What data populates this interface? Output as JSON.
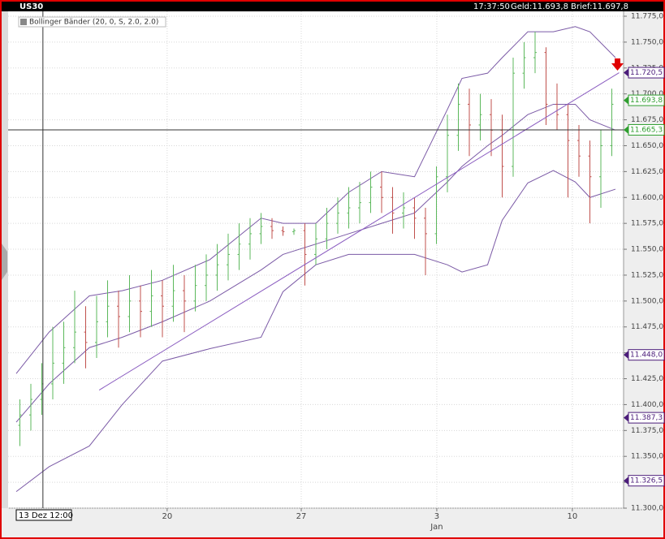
{
  "chart_data": {
    "type": "ohlc",
    "symbol": "US30",
    "time": "17:37:50",
    "bid": "Geld:11.693,8",
    "ask": "Brief:11.697,8",
    "indicator_label": "Bollinger Bänder (20, 0, S, 2.0, 2.0)",
    "xlim": [
      0,
      166
    ],
    "ylim": [
      11300,
      11775
    ],
    "grid": true,
    "up_color": "#5cb85c",
    "down_color": "#c0504d",
    "yticks": [
      {
        "value": 11300,
        "label": "11.300,0"
      },
      {
        "value": 11325,
        "label": "11.325,0"
      },
      {
        "value": 11350,
        "label": "11.350,0"
      },
      {
        "value": 11375,
        "label": "11.375,0"
      },
      {
        "value": 11400,
        "label": "11.400,0"
      },
      {
        "value": 11425,
        "label": "11.425,0"
      },
      {
        "value": 11450,
        "label": "11.450,0"
      },
      {
        "value": 11475,
        "label": "11.475,0"
      },
      {
        "value": 11500,
        "label": "11.500,0"
      },
      {
        "value": 11525,
        "label": "11.525,0"
      },
      {
        "value": 11550,
        "label": "11.550,0"
      },
      {
        "value": 11575,
        "label": "11.575,0"
      },
      {
        "value": 11600,
        "label": "11.600,0"
      },
      {
        "value": 11625,
        "label": "11.625,0"
      },
      {
        "value": 11650,
        "label": "11.650,0"
      },
      {
        "value": 11675,
        "label": "11.675,0"
      },
      {
        "value": 11700,
        "label": "11.700,0"
      },
      {
        "value": 11725,
        "label": "11.725,0"
      },
      {
        "value": 11750,
        "label": "11.750,0"
      },
      {
        "value": 11775,
        "label": "11.775,0"
      }
    ],
    "xticks": [
      {
        "value": 41.3,
        "label": "20"
      },
      {
        "value": 78,
        "label": "27"
      },
      {
        "value": 115.1,
        "label": "3"
      },
      {
        "value": 152.2,
        "label": "10"
      }
    ],
    "x_period_labels": [
      {
        "value": 115.1,
        "label": "Jan"
      }
    ],
    "x": [
      1,
      4,
      7,
      10,
      13,
      16,
      19,
      22,
      25,
      28,
      31,
      34,
      37,
      40,
      43,
      46,
      49,
      52,
      55,
      58,
      61,
      64,
      67,
      70,
      73,
      76,
      79,
      82,
      85,
      88,
      91,
      94,
      97,
      100,
      103,
      106,
      109,
      112,
      115,
      118,
      121,
      124,
      127,
      130,
      133,
      136,
      139,
      142,
      145,
      148,
      151,
      154,
      157,
      160,
      163
    ],
    "open": [
      11380,
      11390,
      11405,
      11420,
      11440,
      11455,
      11470,
      11460,
      11480,
      11495,
      11485,
      11500,
      11490,
      11505,
      11495,
      11510,
      11500,
      11515,
      11525,
      11535,
      11545,
      11555,
      11565,
      11572,
      11568,
      11567,
      11568,
      11545,
      11560,
      11575,
      11585,
      11590,
      11595,
      11610,
      11600,
      11585,
      11590,
      11580,
      11565,
      11620,
      11660,
      11690,
      11670,
      11680,
      11665,
      11630,
      11720,
      11735,
      11740,
      11690,
      11680,
      11655,
      11640,
      11620,
      11650
    ],
    "high": [
      11405,
      11420,
      11440,
      11475,
      11480,
      11510,
      11495,
      11505,
      11520,
      11510,
      11525,
      11515,
      11530,
      11520,
      11535,
      11525,
      11535,
      11545,
      11555,
      11565,
      11575,
      11580,
      11585,
      11580,
      11572,
      11570,
      11575,
      11575,
      11590,
      11600,
      11610,
      11615,
      11625,
      11625,
      11610,
      11605,
      11600,
      11590,
      11630,
      11680,
      11710,
      11705,
      11700,
      11695,
      11680,
      11735,
      11750,
      11760,
      11745,
      11710,
      11690,
      11670,
      11655,
      11665,
      11705
    ],
    "low": [
      11360,
      11375,
      11390,
      11405,
      11420,
      11440,
      11435,
      11445,
      11465,
      11455,
      11470,
      11465,
      11475,
      11465,
      11480,
      11470,
      11490,
      11500,
      11510,
      11520,
      11530,
      11540,
      11555,
      11560,
      11563,
      11564,
      11515,
      11535,
      11550,
      11565,
      11570,
      11575,
      11585,
      11585,
      11565,
      11570,
      11560,
      11525,
      11555,
      11605,
      11645,
      11640,
      11655,
      11640,
      11600,
      11620,
      11705,
      11720,
      11670,
      11665,
      11600,
      11620,
      11575,
      11590,
      11640
    ],
    "close": [
      11390,
      11405,
      11420,
      11440,
      11455,
      11470,
      11460,
      11480,
      11495,
      11485,
      11500,
      11490,
      11505,
      11495,
      11510,
      11500,
      11515,
      11525,
      11535,
      11545,
      11555,
      11565,
      11572,
      11568,
      11567,
      11568,
      11545,
      11560,
      11575,
      11585,
      11590,
      11595,
      11610,
      11600,
      11585,
      11590,
      11580,
      11565,
      11620,
      11660,
      11690,
      11670,
      11680,
      11665,
      11630,
      11720,
      11735,
      11740,
      11690,
      11680,
      11655,
      11640,
      11620,
      11650,
      11690
    ],
    "bands": {
      "color": "#7b5aa6",
      "x": [
        0,
        9,
        20,
        29,
        40,
        53,
        67,
        73,
        82,
        91,
        100,
        109,
        118,
        122,
        129,
        133,
        140,
        147,
        153,
        157,
        164
      ],
      "upper": [
        11430,
        11470,
        11505,
        11510,
        11520,
        11540,
        11580,
        11575,
        11575,
        11605,
        11625,
        11620,
        11685,
        11715,
        11720,
        11735,
        11760,
        11760,
        11765,
        11760,
        11735
      ],
      "middle": [
        11383,
        11420,
        11455,
        11465,
        11480,
        11500,
        11530,
        11545,
        11555,
        11565,
        11575,
        11585,
        11615,
        11630,
        11650,
        11660,
        11680,
        11690,
        11690,
        11675,
        11665
      ],
      "lower": [
        11316,
        11340,
        11360,
        11400,
        11442,
        11454,
        11465,
        11509,
        11535,
        11545,
        11545,
        11545,
        11535,
        11528,
        11535,
        11578,
        11614,
        11626,
        11615,
        11600,
        11608
      ]
    },
    "trendline": {
      "color": "#8a5cc0",
      "x": [
        22.7,
        165
      ],
      "values": [
        11414,
        11720.5
      ]
    },
    "crosshair": {
      "x": 7.3,
      "x_label": "13 Dez 12:00",
      "y": 11665.3
    },
    "price_markers": [
      {
        "value": 11720.5,
        "label": "11.720,5",
        "color": "#4b1c7a"
      },
      {
        "value": 11693.8,
        "label": "11.693,8",
        "color": "#2e9e2e"
      },
      {
        "value": 11665.3,
        "label": "11.665,3",
        "color": "#2e9e2e"
      },
      {
        "value": 11448.0,
        "label": "11.448,0",
        "color": "#4b1c7a"
      },
      {
        "value": 11387.3,
        "label": "11.387,3",
        "color": "#4b1c7a"
      },
      {
        "value": 11326.5,
        "label": "11.326,5",
        "color": "#4b1c7a"
      }
    ]
  }
}
